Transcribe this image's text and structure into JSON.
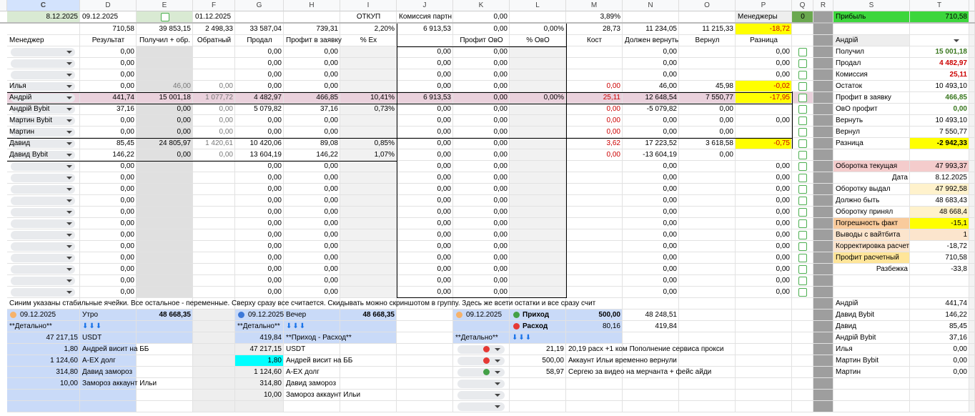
{
  "columns": [
    "C",
    "D",
    "E",
    "F",
    "G",
    "H",
    "I",
    "J",
    "K",
    "L",
    "M",
    "N",
    "O",
    "P",
    "Q",
    "R",
    "S",
    "T"
  ],
  "rows": [
    {
      "C": "8.12.2025",
      "D": "09.12.2025",
      "F": "01.12.2025",
      "I": "ОТКУП",
      "J": "Комиссия партн",
      "K": "0,00",
      "M": "3,89%",
      "P": "Менеджеры",
      "Q": "0",
      "S": "Прибыль",
      "T": "710,58"
    },
    {
      "D": "710,58",
      "E": "39 853,15",
      "F": "2 498,33",
      "G": "33 587,04",
      "H": "739,31",
      "I": "2,20%",
      "J": "6 913,53",
      "K": "0,00",
      "L": "0,00%",
      "M": "28,73",
      "N": "11 234,05",
      "O": "11 215,33",
      "P": "-18,72"
    },
    {
      "C": "Менеджер",
      "D": "Результат",
      "E": "Получил + обр.",
      "F": "Обратный",
      "G": "Продал",
      "H": "Профит в заявку",
      "I": "% Ex",
      "K": "Профит ОвО",
      "L": "% ОвО",
      "M": "Кост",
      "N": "Должен вернуть",
      "O": "Вернул",
      "P": "Разница",
      "S": "Андрій"
    },
    {
      "D": "0,00",
      "G": "0,00",
      "H": "0,00",
      "J": "0,00",
      "K": "0,00",
      "N": "0,00",
      "P": "0,00",
      "S": "Получил",
      "T": "15 001,18"
    },
    {
      "D": "0,00",
      "G": "0,00",
      "H": "0,00",
      "J": "0,00",
      "K": "0,00",
      "N": "0,00",
      "P": "0,00",
      "S": "Продал",
      "T": "4 482,97"
    },
    {
      "D": "0,00",
      "G": "0,00",
      "H": "0,00",
      "J": "0,00",
      "K": "0,00",
      "N": "0,00",
      "P": "0,00",
      "S": "Комиссия",
      "T": "25,11"
    },
    {
      "C": "Илья",
      "D": "0,00",
      "E": "46,00",
      "F": "0,00",
      "G": "0,00",
      "H": "0,00",
      "J": "0,00",
      "K": "0,00",
      "M": "0,00",
      "N": "46,00",
      "O": "45,98",
      "P": "-0,02",
      "S": "Остаток",
      "T": "10 493,10"
    },
    {
      "C": "Андрій",
      "D": "441,74",
      "E": "15 001,18",
      "F": "1 077,72",
      "G": "4 482,97",
      "H": "466,85",
      "I": "10,41%",
      "J": "6 913,53",
      "K": "0,00",
      "L": "0,00%",
      "M": "25,11",
      "N": "12 648,54",
      "O": "7 550,77",
      "P": "-17,95",
      "S": "Профит в заявку",
      "T": "466,85"
    },
    {
      "C": "Андрій Bybit",
      "D": "37,16",
      "E": "0,00",
      "F": "0,00",
      "G": "5 079,82",
      "H": "37,16",
      "I": "0,73%",
      "J": "0,00",
      "K": "0,00",
      "M": "0,00",
      "N": "-5 079,82",
      "O": "0,00",
      "S": "ОвО профит",
      "T": "0,00"
    },
    {
      "C": "Мартин Bybit",
      "D": "0,00",
      "E": "0,00",
      "F": "0,00",
      "G": "0,00",
      "H": "0,00",
      "J": "0,00",
      "K": "0,00",
      "M": "0,00",
      "N": "0,00",
      "O": "0,00",
      "P": "0,00",
      "S": "Вернуть",
      "T": "10 493,10"
    },
    {
      "C": "Мартин",
      "D": "0,00",
      "E": "0,00",
      "F": "0,00",
      "G": "0,00",
      "H": "0,00",
      "J": "0,00",
      "K": "0,00",
      "M": "0,00",
      "N": "0,00",
      "O": "0,00",
      "S": "Вернул",
      "T": "7 550,77"
    },
    {
      "C": "Давид",
      "D": "85,45",
      "E": "24 805,97",
      "F": "1 420,61",
      "G": "10 420,06",
      "H": "89,08",
      "I": "0,85%",
      "J": "0,00",
      "K": "0,00",
      "M": "3,62",
      "N": "17 223,52",
      "O": "3 618,58",
      "P": "-0,75",
      "S": "Разница",
      "T": "-2 942,33"
    },
    {
      "C": "Давид Bybit",
      "D": "146,22",
      "E": "0,00",
      "F": "0,00",
      "G": "13 604,19",
      "H": "146,22",
      "I": "1,07%",
      "J": "0,00",
      "K": "0,00",
      "M": "0,00",
      "N": "-13 604,19",
      "O": "0,00"
    },
    {
      "D": "0,00",
      "G": "0,00",
      "H": "0,00",
      "J": "0,00",
      "K": "0,00",
      "N": "0,00",
      "P": "0,00",
      "S": "Оборотка текущая",
      "T": "47 993,37"
    },
    {
      "D": "0,00",
      "G": "0,00",
      "H": "0,00",
      "J": "0,00",
      "K": "0,00",
      "N": "0,00",
      "P": "0,00",
      "S": "Дата",
      "T": "8.12.2025"
    },
    {
      "D": "0,00",
      "G": "0,00",
      "H": "0,00",
      "J": "0,00",
      "K": "0,00",
      "N": "0,00",
      "P": "0,00",
      "S": "Оборотку выдал",
      "T": "47 992,58"
    },
    {
      "D": "0,00",
      "G": "0,00",
      "H": "0,00",
      "J": "0,00",
      "K": "0,00",
      "N": "0,00",
      "P": "0,00",
      "S": "Должно быть",
      "T": "48 683,43"
    },
    {
      "D": "0,00",
      "G": "0,00",
      "H": "0,00",
      "J": "0,00",
      "K": "0,00",
      "N": "0,00",
      "P": "0,00",
      "S": "Оборотку принял",
      "T": "48 668,4"
    },
    {
      "D": "0,00",
      "G": "0,00",
      "H": "0,00",
      "J": "0,00",
      "K": "0,00",
      "N": "0,00",
      "P": "0,00",
      "S": "Погрешность факт",
      "T": "-15,1"
    },
    {
      "D": "0,00",
      "G": "0,00",
      "H": "0,00",
      "J": "0,00",
      "K": "0,00",
      "N": "0,00",
      "P": "0,00",
      "S": "Выводы с вайтбита",
      "T": "1"
    },
    {
      "D": "0,00",
      "G": "0,00",
      "H": "0,00",
      "J": "0,00",
      "K": "0,00",
      "N": "0,00",
      "P": "0,00",
      "S": "Корректировка расчет",
      "T": "-18,72"
    },
    {
      "D": "0,00",
      "G": "0,00",
      "H": "0,00",
      "J": "0,00",
      "K": "0,00",
      "N": "0,00",
      "P": "0,00",
      "S": "Профит расчетный",
      "T": "710,58"
    },
    {
      "D": "0,00",
      "G": "0,00",
      "H": "0,00",
      "J": "0,00",
      "K": "0,00",
      "N": "0,00",
      "P": "0,00",
      "S": "Разбежка",
      "T": "-33,8"
    },
    {
      "D": "0,00",
      "G": "0,00",
      "H": "0,00",
      "J": "0,00",
      "K": "0,00",
      "N": "0,00",
      "P": "0,00"
    },
    {
      "D": "0,00",
      "G": "0,00",
      "H": "0,00",
      "J": "0,00",
      "K": "0,00",
      "N": "0,00",
      "P": "0,00"
    },
    {
      "C": "Синим указаны стабильные ячейки. Все остальное - переменные. Сверху сразу все считается. Скидывать можно скриншотом в группу. Здесь же всети остатки и все сразу счит",
      "S": "Андрій",
      "T": "441,74"
    },
    {
      "C": "09.12.2025",
      "D": "Утро",
      "E": "48 668,35",
      "G": "09.12.2025",
      "H": "Вечер",
      "I": "48 668,35",
      "K": "09.12.2025",
      "L": "Приход",
      "M": "500,00",
      "N": "48 248,51",
      "S": "Давид Bybit",
      "T": "146,22"
    },
    {
      "C": "**Детально**",
      "D": "⬇⬇⬇",
      "G": "**Детально**",
      "H": "⬇⬇⬇",
      "L": "Расход",
      "M": "80,16",
      "N": "419,84",
      "S": "Давид",
      "T": "85,45"
    },
    {
      "C": "47 217,15",
      "D": "USDT",
      "G": "419,84",
      "H": "**Приход - Расход**",
      "K": "**Детально**",
      "L": "⬇⬇⬇",
      "S": "Андрій Bybit",
      "T": "37,16"
    },
    {
      "C": "1,80",
      "D": "Андрей висит на ББ",
      "G": "47 217,15",
      "H": "USDT",
      "L": "21,19",
      "M": "20,19 расх +1 ком Пополнение сервиса прокси",
      "S": "Илья",
      "T": "0,00"
    },
    {
      "C": "1 124,60",
      "D": "A-EX долг",
      "G": "1,80",
      "H": "Андрей висит на ББ",
      "L": "500,00",
      "M": "Аккаунт Ильи временно вернули",
      "S": "Мартин Bybit",
      "T": "0,00"
    },
    {
      "C": "314,80",
      "D": "Давид замороз",
      "G": "1 124,60",
      "H": "A-EX долг",
      "L": "58,97",
      "M": "Сергею за видео на мерчанта + фейс айди",
      "S": "Мартин",
      "T": "0,00"
    },
    {
      "C": "10,00",
      "D": "Замороз аккаунт Ильи",
      "G": "314,80",
      "H": "Давид замороз"
    },
    {
      "G": "10,00",
      "H": "Замороз аккаунт Ильи"
    },
    {}
  ]
}
